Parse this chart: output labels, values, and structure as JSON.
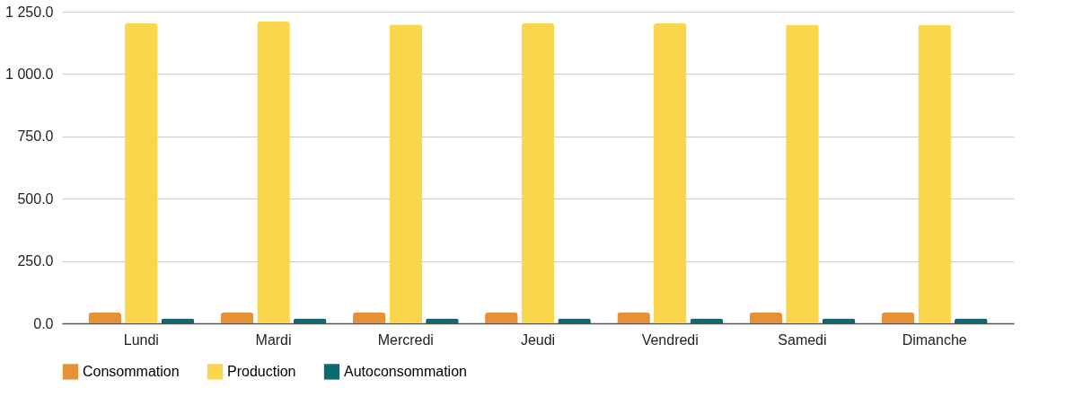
{
  "chart_data": {
    "type": "bar",
    "categories": [
      "Lundi",
      "Mardi",
      "Mercredi",
      "Jeudi",
      "Vendredi",
      "Samedi",
      "Dimanche"
    ],
    "series": [
      {
        "name": "Consommation",
        "color": "#e69138",
        "values": [
          43,
          43,
          43,
          43,
          43,
          43,
          43
        ]
      },
      {
        "name": "Production",
        "color": "#f9d64b",
        "values": [
          1203,
          1210,
          1199,
          1203,
          1203,
          1198,
          1198
        ]
      },
      {
        "name": "Autoconsommation",
        "color": "#0b6b6e",
        "values": [
          20,
          20,
          20,
          20,
          20,
          20,
          20
        ]
      }
    ],
    "ylim": [
      0,
      1250
    ],
    "yticks": [
      {
        "value": 0,
        "label": "0.0"
      },
      {
        "value": 250,
        "label": "250.0"
      },
      {
        "value": 500,
        "label": "500.0"
      },
      {
        "value": 750,
        "label": "750.0"
      },
      {
        "value": 1000,
        "label": "1 000.0"
      },
      {
        "value": 1250,
        "label": "1 250.0"
      }
    ],
    "grid": "y",
    "legend": "bottom"
  }
}
